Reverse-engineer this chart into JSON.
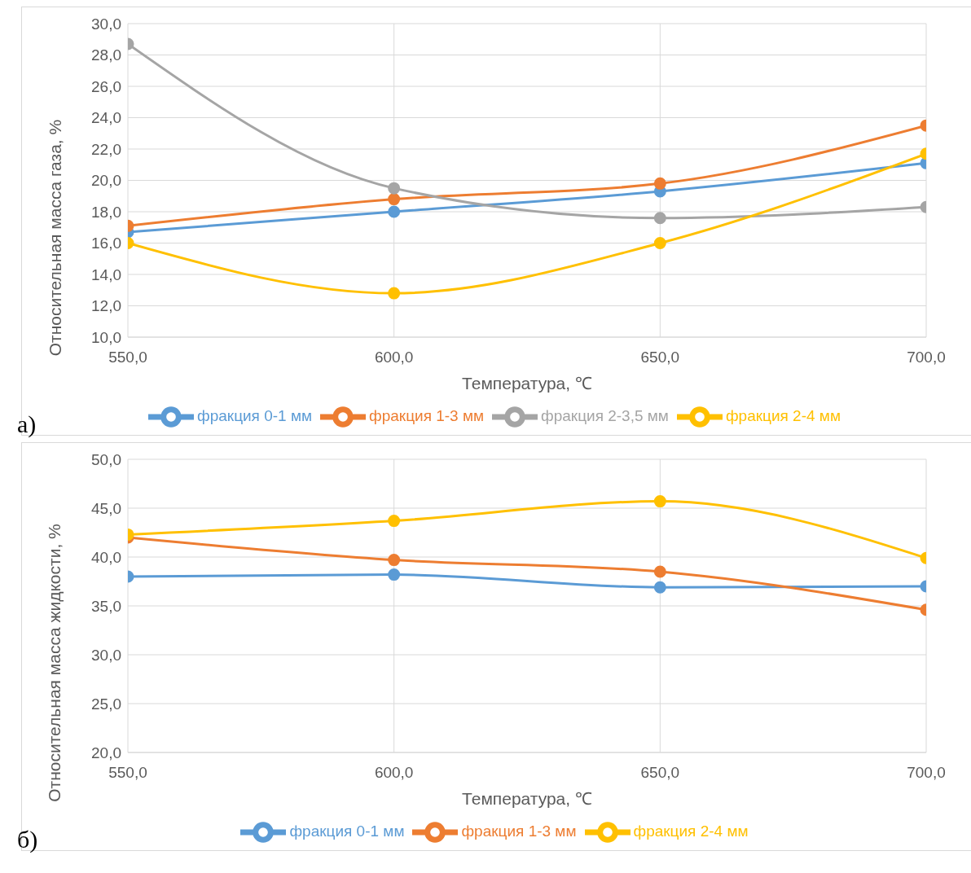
{
  "chart_data": [
    {
      "type": "line",
      "xlabel": "Температура, ℃",
      "ylabel": "Относительная масса газа, %",
      "annotations": [
        "а)"
      ],
      "x": [
        550,
        600,
        650,
        700
      ],
      "xlim": [
        550,
        700
      ],
      "xticks": [
        {
          "value": 550,
          "label": "550,0"
        },
        {
          "value": 600,
          "label": "600,0"
        },
        {
          "value": 650,
          "label": "650,0"
        },
        {
          "value": 700,
          "label": "700,0"
        }
      ],
      "ylim": [
        10,
        30
      ],
      "yticks": [
        {
          "value": 10,
          "label": "10,0"
        },
        {
          "value": 12,
          "label": "12,0"
        },
        {
          "value": 14,
          "label": "14,0"
        },
        {
          "value": 16,
          "label": "16,0"
        },
        {
          "value": 18,
          "label": "18,0"
        },
        {
          "value": 20,
          "label": "20,0"
        },
        {
          "value": 22,
          "label": "22,0"
        },
        {
          "value": 24,
          "label": "24,0"
        },
        {
          "value": 26,
          "label": "26,0"
        },
        {
          "value": 28,
          "label": "28,0"
        },
        {
          "value": 30,
          "label": "30,0"
        }
      ],
      "grid": true,
      "legend": "bottom",
      "marker": "circle",
      "series": [
        {
          "name": "фракция 0-1 мм",
          "color": "#5b9bd5",
          "values": [
            16.7,
            18.0,
            19.3,
            21.1
          ]
        },
        {
          "name": "фракция 1-3 мм",
          "color": "#ed7d31",
          "values": [
            17.1,
            18.8,
            19.8,
            23.5
          ]
        },
        {
          "name": "фракция 2-3,5 мм",
          "color": "#a5a5a5",
          "values": [
            28.7,
            19.5,
            17.6,
            18.3
          ]
        },
        {
          "name": "фракция 2-4 мм",
          "color": "#ffc000",
          "values": [
            16.0,
            12.8,
            16.0,
            21.7
          ]
        }
      ]
    },
    {
      "type": "line",
      "xlabel": "Температура, ℃",
      "ylabel": "Относительная масса жидкости, %",
      "annotations": [
        "б)"
      ],
      "x": [
        550,
        600,
        650,
        700
      ],
      "xlim": [
        550,
        700
      ],
      "xticks": [
        {
          "value": 550,
          "label": "550,0"
        },
        {
          "value": 600,
          "label": "600,0"
        },
        {
          "value": 650,
          "label": "650,0"
        },
        {
          "value": 700,
          "label": "700,0"
        }
      ],
      "ylim": [
        20,
        50
      ],
      "yticks": [
        {
          "value": 20,
          "label": "20,0"
        },
        {
          "value": 25,
          "label": "25,0"
        },
        {
          "value": 30,
          "label": "30,0"
        },
        {
          "value": 35,
          "label": "35,0"
        },
        {
          "value": 40,
          "label": "40,0"
        },
        {
          "value": 45,
          "label": "45,0"
        },
        {
          "value": 50,
          "label": "50,0"
        }
      ],
      "grid": true,
      "legend": "bottom",
      "marker": "circle",
      "series": [
        {
          "name": "фракция 0-1 мм",
          "color": "#5b9bd5",
          "values": [
            38.0,
            38.2,
            36.9,
            37.0
          ]
        },
        {
          "name": "фракция 1-3 мм",
          "color": "#ed7d31",
          "values": [
            42.0,
            39.7,
            38.5,
            34.6
          ]
        },
        {
          "name": "фракция 2-4 мм",
          "color": "#ffc000",
          "values": [
            42.3,
            43.7,
            45.7,
            39.9
          ]
        }
      ]
    }
  ]
}
